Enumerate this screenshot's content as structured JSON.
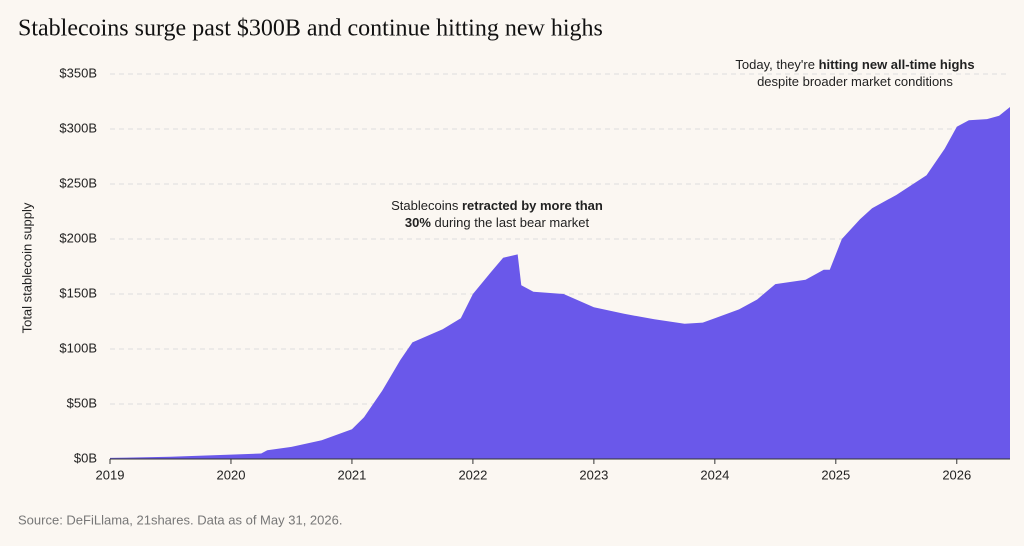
{
  "chart_data": {
    "type": "area",
    "title": "Stablecoins surge past $300B and continue hitting new highs",
    "ylabel": "Total stablecoin supply",
    "source": "Source: DeFiLlama, 21shares. Data as of May 31, 2026.",
    "color": "#6a58ea",
    "grid": true,
    "x": [
      2019.0,
      2019.5,
      2020.0,
      2020.25,
      2020.3,
      2020.5,
      2020.75,
      2021.0,
      2021.1,
      2021.25,
      2021.4,
      2021.5,
      2021.75,
      2021.9,
      2022.0,
      2022.15,
      2022.25,
      2022.37,
      2022.4,
      2022.5,
      2022.75,
      2023.0,
      2023.25,
      2023.5,
      2023.75,
      2023.9,
      2024.0,
      2024.2,
      2024.35,
      2024.5,
      2024.75,
      2024.9,
      2024.95,
      2025.05,
      2025.2,
      2025.3,
      2025.5,
      2025.75,
      2025.9,
      2026.0,
      2026.1,
      2026.25,
      2026.35,
      2026.44
    ],
    "values": [
      1,
      2,
      4,
      5,
      8,
      11,
      17,
      27,
      38,
      62,
      90,
      106,
      118,
      128,
      150,
      170,
      183,
      186,
      158,
      152,
      150,
      138,
      132,
      127,
      123,
      124,
      128,
      136,
      145,
      159,
      163,
      172,
      172,
      200,
      218,
      228,
      240,
      258,
      282,
      302,
      308,
      309,
      312,
      320
    ],
    "xlim": [
      2019,
      2026.44
    ],
    "xticks": [
      2019,
      2020,
      2021,
      2022,
      2023,
      2024,
      2025,
      2026
    ],
    "ylim": [
      0,
      350
    ],
    "yticks": [
      {
        "value": 0,
        "label": "$0B"
      },
      {
        "value": 50,
        "label": "$50B"
      },
      {
        "value": 100,
        "label": "$100B"
      },
      {
        "value": 150,
        "label": "$150B"
      },
      {
        "value": 200,
        "label": "$200B"
      },
      {
        "value": 250,
        "label": "$250B"
      },
      {
        "value": 300,
        "label": "$300B"
      },
      {
        "value": 350,
        "label": "$350B"
      }
    ],
    "annotations": [
      {
        "lines": [
          [
            {
              "text": "Stablecoins ",
              "bold": false
            },
            {
              "text": "retracted by more than",
              "bold": true
            }
          ],
          [
            {
              "text": "30%",
              "bold": true
            },
            {
              "text": " during the last bear market",
              "bold": false
            }
          ]
        ]
      },
      {
        "lines": [
          [
            {
              "text": "Today,  they're ",
              "bold": false
            },
            {
              "text": "hitting new all-time highs",
              "bold": true
            }
          ],
          [
            {
              "text": "despite broader market conditions",
              "bold": false
            }
          ]
        ]
      }
    ]
  }
}
